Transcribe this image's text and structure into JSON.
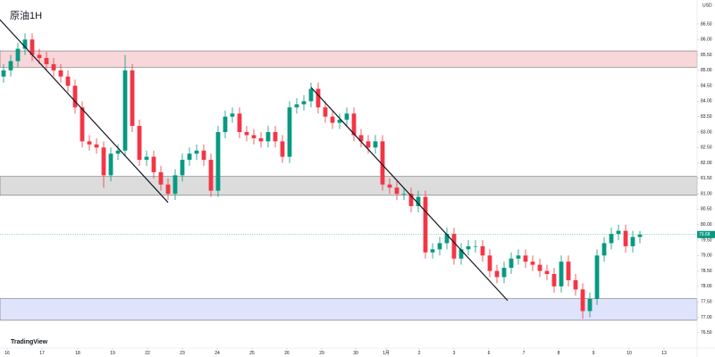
{
  "chart_data": {
    "type": "candlestick",
    "title": "原油1H",
    "currency": "USD",
    "watermark": "TradingView",
    "up_color": "#089981",
    "down_color": "#f23645",
    "grid": false,
    "xlim": [
      -0.5,
      97
    ],
    "xticks": [
      {
        "value": 0.5,
        "label": "16"
      },
      {
        "value": 5.375,
        "label": "17"
      },
      {
        "value": 10.375,
        "label": "18"
      },
      {
        "value": 15.25,
        "label": "19"
      },
      {
        "value": 20.125,
        "label": "22"
      },
      {
        "value": 25,
        "label": "23"
      },
      {
        "value": 29.875,
        "label": "24"
      },
      {
        "value": 34.75,
        "label": "25"
      },
      {
        "value": 39.625,
        "label": "26"
      },
      {
        "value": 44.5,
        "label": "29"
      },
      {
        "value": 49.25,
        "label": "30"
      },
      {
        "value": 53.5,
        "label": "1月"
      },
      {
        "value": 58.125,
        "label": "2"
      },
      {
        "value": 63,
        "label": "3"
      },
      {
        "value": 67.875,
        "label": "6"
      },
      {
        "value": 72.75,
        "label": "7"
      },
      {
        "value": 77.625,
        "label": "8"
      },
      {
        "value": 82.5,
        "label": "9"
      },
      {
        "value": 87.5,
        "label": "10"
      },
      {
        "value": 92.375,
        "label": "13"
      }
    ],
    "ylim": [
      76.0,
      87.28
    ],
    "yticks": [
      {
        "value": 86.5,
        "label": "86.50"
      },
      {
        "value": 86,
        "label": "86.00"
      },
      {
        "value": 85.5,
        "label": "85.50"
      },
      {
        "value": 85,
        "label": "85.00"
      },
      {
        "value": 84.5,
        "label": "84.50"
      },
      {
        "value": 84,
        "label": "84.00"
      },
      {
        "value": 83.5,
        "label": "83.50"
      },
      {
        "value": 83,
        "label": "83.00"
      },
      {
        "value": 82.5,
        "label": "82.50"
      },
      {
        "value": 82,
        "label": "82.00"
      },
      {
        "value": 81.5,
        "label": "81.50"
      },
      {
        "value": 81,
        "label": "81.00"
      },
      {
        "value": 80.5,
        "label": "80.50"
      },
      {
        "value": 80,
        "label": "80.00"
      },
      {
        "value": 79.5,
        "label": "79.50"
      },
      {
        "value": 79,
        "label": "79.00"
      },
      {
        "value": 78.5,
        "label": "78.50"
      },
      {
        "value": 78,
        "label": "78.00"
      },
      {
        "value": 77.5,
        "label": "77.50"
      },
      {
        "value": 77,
        "label": "77.00"
      },
      {
        "value": 76.5,
        "label": "76.50"
      }
    ],
    "open": [
      84.8,
      85.0,
      85.3,
      85.7,
      86.0,
      85.5,
      85.4,
      85.2,
      85.0,
      84.8,
      84.5,
      83.8,
      82.7,
      82.6,
      82.5,
      81.6,
      82.3,
      82.4,
      85.0,
      83.2,
      82.1,
      82.2,
      81.7,
      81.3,
      81.0,
      81.6,
      82.1,
      82.3,
      82.4,
      82.1,
      81.1,
      83.0,
      83.5,
      83.6,
      83.0,
      82.9,
      82.8,
      82.7,
      83.0,
      82.7,
      82.2,
      83.8,
      83.9,
      84.0,
      84.4,
      83.8,
      83.5,
      83.3,
      83.4,
      83.6,
      82.9,
      82.7,
      82.5,
      82.7,
      81.3,
      81.2,
      81.0,
      81.0,
      80.6,
      80.9,
      79.1,
      79.2,
      79.4,
      79.7,
      78.9,
      79.2,
      79.3,
      79.3,
      79.0,
      78.5,
      78.3,
      78.6,
      78.9,
      79.0,
      78.8,
      78.7,
      78.5,
      78.4,
      78.0,
      78.8,
      78.2,
      77.9,
      77.2,
      77.6,
      79.0,
      79.4,
      79.7,
      79.8,
      79.3,
      79.6
    ],
    "high": [
      85.2,
      85.5,
      85.9,
      86.2,
      86.2,
      85.7,
      85.6,
      85.4,
      85.2,
      85.0,
      84.7,
      84.0,
      82.9,
      82.8,
      82.7,
      82.5,
      82.6,
      85.5,
      85.2,
      83.4,
      82.4,
      82.4,
      81.9,
      81.5,
      81.8,
      82.3,
      82.5,
      82.6,
      82.6,
      82.3,
      83.2,
      83.7,
      83.8,
      83.8,
      83.2,
      83.1,
      83.0,
      83.2,
      83.2,
      82.9,
      84.0,
      84.1,
      84.2,
      84.6,
      84.6,
      84.0,
      83.7,
      83.6,
      83.8,
      83.8,
      83.1,
      82.9,
      82.9,
      82.9,
      81.5,
      81.4,
      81.2,
      81.2,
      81.1,
      81.1,
      79.4,
      79.6,
      79.9,
      79.9,
      79.4,
      79.5,
      79.5,
      79.5,
      79.2,
      78.7,
      78.8,
      79.1,
      79.2,
      79.2,
      79.0,
      78.9,
      78.7,
      78.6,
      79.0,
      79.0,
      78.4,
      78.1,
      77.8,
      79.2,
      79.6,
      79.9,
      80.0,
      80.0,
      79.8,
      79.8
    ],
    "low": [
      84.6,
      84.8,
      85.1,
      85.5,
      85.3,
      85.2,
      85.0,
      84.8,
      84.6,
      84.3,
      83.6,
      82.5,
      82.4,
      82.3,
      81.2,
      81.4,
      82.1,
      82.2,
      83.0,
      81.9,
      81.9,
      81.5,
      81.1,
      80.8,
      80.8,
      81.4,
      81.9,
      82.1,
      81.9,
      80.9,
      80.9,
      82.8,
      83.3,
      82.8,
      82.7,
      82.6,
      82.5,
      82.5,
      82.5,
      82.0,
      82.0,
      83.6,
      83.7,
      83.8,
      83.6,
      83.3,
      83.1,
      83.1,
      83.2,
      82.7,
      82.5,
      82.3,
      82.3,
      81.1,
      81.0,
      80.8,
      80.8,
      80.4,
      80.4,
      78.9,
      78.9,
      79.0,
      79.2,
      78.7,
      78.7,
      79.0,
      79.1,
      78.8,
      78.3,
      78.1,
      78.1,
      78.4,
      78.7,
      78.6,
      78.5,
      78.3,
      78.2,
      77.8,
      77.8,
      78.0,
      77.7,
      76.95,
      77.0,
      77.4,
      78.8,
      79.2,
      79.5,
      79.1,
      79.1,
      79.4
    ],
    "close": [
      85.0,
      85.3,
      85.7,
      86.0,
      85.5,
      85.4,
      85.2,
      85.0,
      84.8,
      84.5,
      83.8,
      82.7,
      82.6,
      82.5,
      81.6,
      82.3,
      82.4,
      85.0,
      83.2,
      82.1,
      82.2,
      81.7,
      81.3,
      81.0,
      81.6,
      82.1,
      82.3,
      82.4,
      82.1,
      81.1,
      83.0,
      83.5,
      83.6,
      83.0,
      82.9,
      82.8,
      82.7,
      83.0,
      82.7,
      82.2,
      83.8,
      83.9,
      84.0,
      84.4,
      83.8,
      83.5,
      83.3,
      83.4,
      83.6,
      82.9,
      82.7,
      82.5,
      82.7,
      81.3,
      81.2,
      81.0,
      81.0,
      80.6,
      80.9,
      79.1,
      79.2,
      79.4,
      79.7,
      78.9,
      79.2,
      79.3,
      79.3,
      79.0,
      78.5,
      78.3,
      78.6,
      78.9,
      79.0,
      78.8,
      78.7,
      78.5,
      78.4,
      78.0,
      78.8,
      78.2,
      77.9,
      77.2,
      77.6,
      79.0,
      79.4,
      79.7,
      79.8,
      79.3,
      79.6,
      79.68
    ],
    "zones": [
      {
        "low": 85.1,
        "high": 85.63,
        "color": "#f7d7da"
      },
      {
        "low": 80.95,
        "high": 81.56,
        "color": "#dcdcdc"
      },
      {
        "low": 76.9,
        "high": 77.6,
        "color": "#dfe3fb"
      }
    ],
    "trendlines": [
      {
        "x": [
          -0.5,
          23
        ],
        "y": [
          86.64,
          80.72
        ]
      },
      {
        "x": [
          43,
          70.5
        ],
        "y": [
          84.45,
          77.54
        ]
      }
    ]
  }
}
